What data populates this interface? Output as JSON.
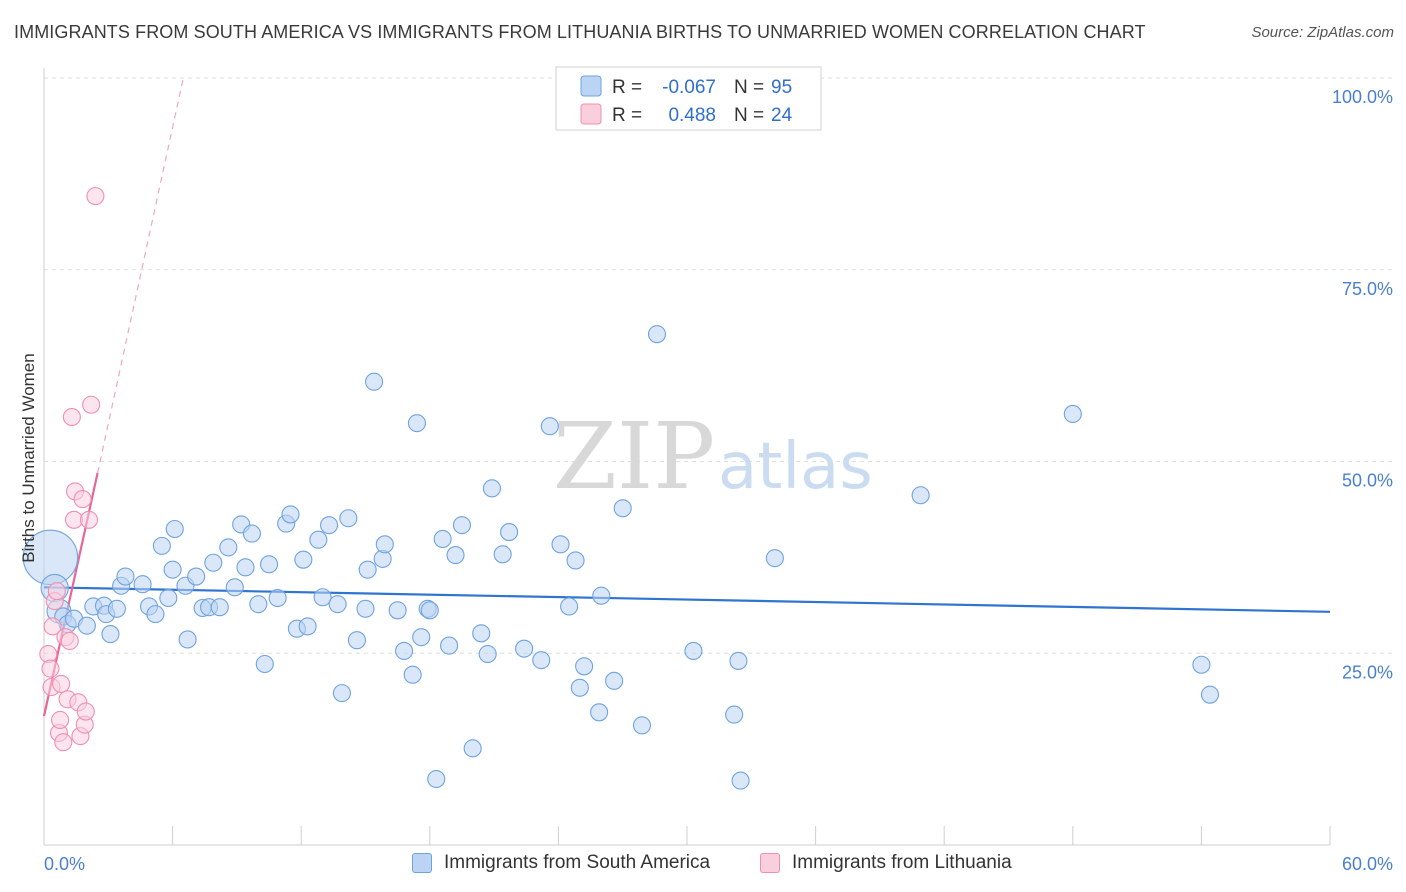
{
  "title": "IMMIGRANTS FROM SOUTH AMERICA VS IMMIGRANTS FROM LITHUANIA BIRTHS TO UNMARRIED WOMEN CORRELATION CHART",
  "source": "Source: ZipAtlas.com",
  "watermark": {
    "zip": "ZIP",
    "atlas": "atlas"
  },
  "colors": {
    "blue": "#6fa3e0",
    "blue_fill": "#bcd4f3",
    "blue_line": "#2f74d0",
    "pink": "#f08fb0",
    "pink_fill": "#f9cfde",
    "pink_line": "#e8659a",
    "axis_text": "#4a7fd0"
  },
  "legend": {
    "rows": [
      {
        "r_label": "R =",
        "r_value": "-0.067",
        "n_label": "N =",
        "n_value": "95"
      },
      {
        "r_label": "R =",
        "r_value": "0.488",
        "n_label": "N =",
        "n_value": "24"
      }
    ]
  },
  "bottom_legend": [
    "Immigrants from South America",
    "Immigrants from Lithuania"
  ],
  "chart_data": {
    "type": "scatter",
    "title": "IMMIGRANTS FROM SOUTH AMERICA VS IMMIGRANTS FROM LITHUANIA BIRTHS TO UNMARRIED WOMEN CORRELATION CHART",
    "xlabel": "",
    "ylabel": "Births to Unmarried Women",
    "xlim": [
      0,
      60
    ],
    "ylim": [
      0,
      100
    ],
    "x_tick_labels": [
      "0.0%",
      "60.0%"
    ],
    "y_ticks": [
      25,
      50,
      75,
      100
    ],
    "y_tick_labels": [
      "25.0%",
      "50.0%",
      "75.0%",
      "100.0%"
    ],
    "grid": true,
    "series": [
      {
        "name": "Immigrants from South America",
        "r": -0.067,
        "n": 95,
        "trend": {
          "x0": 0,
          "y0": 33.6,
          "x1": 60,
          "y1": 30.4
        },
        "points": [
          [
            0.3,
            37.5,
            3.2
          ],
          [
            0.5,
            33.5,
            1.6
          ],
          [
            0.7,
            30.5,
            1.4
          ],
          [
            0.9,
            29.8,
            1
          ],
          [
            1.1,
            28.8,
            1
          ],
          [
            1.4,
            29.5,
            1
          ],
          [
            2.0,
            28.6,
            1
          ],
          [
            2.3,
            31.1,
            1
          ],
          [
            2.8,
            31.2,
            1
          ],
          [
            2.9,
            30.1,
            1
          ],
          [
            3.1,
            27.5,
            1
          ],
          [
            3.4,
            30.8,
            1
          ],
          [
            3.6,
            33.8,
            1
          ],
          [
            3.8,
            35.0,
            1
          ],
          [
            4.6,
            34.0,
            1
          ],
          [
            4.9,
            31.1,
            1
          ],
          [
            5.2,
            30.1,
            1
          ],
          [
            5.5,
            39.0,
            1
          ],
          [
            5.8,
            32.2,
            1
          ],
          [
            6.0,
            35.9,
            1
          ],
          [
            6.1,
            41.2,
            1
          ],
          [
            6.6,
            33.8,
            1
          ],
          [
            6.7,
            26.8,
            1
          ],
          [
            7.1,
            35.0,
            1
          ],
          [
            7.4,
            30.9,
            1
          ],
          [
            7.7,
            31.0,
            1
          ],
          [
            7.9,
            36.8,
            1
          ],
          [
            8.2,
            31.0,
            1
          ],
          [
            8.6,
            38.8,
            1
          ],
          [
            8.9,
            33.6,
            1
          ],
          [
            9.2,
            41.8,
            1
          ],
          [
            9.4,
            36.2,
            1
          ],
          [
            9.7,
            40.6,
            1
          ],
          [
            10.0,
            31.4,
            1
          ],
          [
            10.3,
            23.6,
            1
          ],
          [
            10.5,
            36.6,
            1
          ],
          [
            10.9,
            32.2,
            1
          ],
          [
            11.3,
            41.9,
            1
          ],
          [
            11.5,
            43.1,
            1
          ],
          [
            11.8,
            28.2,
            1
          ],
          [
            12.1,
            37.2,
            1
          ],
          [
            12.3,
            28.5,
            1
          ],
          [
            12.8,
            39.8,
            1
          ],
          [
            13.0,
            32.3,
            1
          ],
          [
            13.3,
            41.7,
            1
          ],
          [
            13.7,
            31.4,
            1
          ],
          [
            13.9,
            19.8,
            1
          ],
          [
            14.2,
            42.6,
            1
          ],
          [
            14.6,
            26.7,
            1
          ],
          [
            15.0,
            30.8,
            1
          ],
          [
            15.1,
            35.9,
            1
          ],
          [
            15.4,
            60.4,
            1
          ],
          [
            15.8,
            37.3,
            1
          ],
          [
            15.9,
            39.2,
            1
          ],
          [
            16.5,
            30.6,
            1
          ],
          [
            16.8,
            25.3,
            1
          ],
          [
            17.2,
            22.2,
            1
          ],
          [
            17.4,
            55.0,
            1
          ],
          [
            17.6,
            27.1,
            1
          ],
          [
            17.9,
            30.8,
            1
          ],
          [
            18.0,
            30.6,
            1
          ],
          [
            18.3,
            8.6,
            1
          ],
          [
            18.6,
            39.9,
            1
          ],
          [
            18.9,
            26.0,
            1
          ],
          [
            19.2,
            37.8,
            1
          ],
          [
            19.5,
            41.7,
            1
          ],
          [
            20.0,
            12.6,
            1
          ],
          [
            20.4,
            27.6,
            1
          ],
          [
            20.7,
            24.9,
            1
          ],
          [
            20.9,
            46.5,
            1
          ],
          [
            21.4,
            37.9,
            1
          ],
          [
            21.7,
            40.8,
            1
          ],
          [
            22.4,
            25.6,
            1
          ],
          [
            23.2,
            24.1,
            1
          ],
          [
            23.6,
            54.6,
            1
          ],
          [
            24.1,
            39.2,
            1
          ],
          [
            24.5,
            31.1,
            1
          ],
          [
            24.8,
            37.1,
            1
          ],
          [
            25.0,
            20.5,
            1
          ],
          [
            25.2,
            23.3,
            1
          ],
          [
            26.0,
            32.5,
            1
          ],
          [
            26.6,
            21.4,
            1
          ],
          [
            27.0,
            43.9,
            1
          ],
          [
            27.9,
            15.6,
            1
          ],
          [
            28.6,
            66.6,
            1
          ],
          [
            30.3,
            25.3,
            1
          ],
          [
            32.2,
            17.0,
            1
          ],
          [
            32.4,
            24.0,
            1
          ],
          [
            32.5,
            8.4,
            1
          ],
          [
            34.1,
            37.4,
            1
          ],
          [
            40.9,
            45.6,
            1
          ],
          [
            48.0,
            56.2,
            1
          ],
          [
            54.0,
            23.5,
            1
          ],
          [
            54.4,
            19.6,
            1
          ],
          [
            25.9,
            17.3,
            1
          ]
        ]
      },
      {
        "name": "Immigrants from Lithuania",
        "r": 0.488,
        "n": 24,
        "trend": {
          "x0": 0,
          "y0": 16.8,
          "x1": 2.5,
          "y1": 48.5
        },
        "trend_ext": {
          "x0": 2.5,
          "y0": 48.5,
          "x1": 6.5,
          "y1": 100
        },
        "points": [
          [
            0.2,
            24.9,
            1
          ],
          [
            0.3,
            23.0,
            1
          ],
          [
            0.35,
            20.6,
            1
          ],
          [
            0.4,
            28.5,
            1
          ],
          [
            0.5,
            31.8,
            1
          ],
          [
            0.6,
            33.1,
            1
          ],
          [
            0.7,
            14.6,
            1
          ],
          [
            0.75,
            16.3,
            1
          ],
          [
            0.8,
            21.0,
            1
          ],
          [
            0.9,
            13.4,
            1
          ],
          [
            1.0,
            27.1,
            1
          ],
          [
            1.1,
            19.0,
            1
          ],
          [
            1.2,
            26.6,
            1
          ],
          [
            1.3,
            55.8,
            1
          ],
          [
            1.4,
            42.4,
            1
          ],
          [
            1.45,
            46.1,
            1
          ],
          [
            1.6,
            18.6,
            1
          ],
          [
            1.7,
            14.2,
            1
          ],
          [
            1.8,
            45.1,
            1
          ],
          [
            1.9,
            15.7,
            1
          ],
          [
            1.95,
            17.4,
            1
          ],
          [
            2.1,
            42.4,
            1
          ],
          [
            2.2,
            57.4,
            1
          ],
          [
            2.4,
            84.6,
            1
          ]
        ]
      }
    ]
  }
}
